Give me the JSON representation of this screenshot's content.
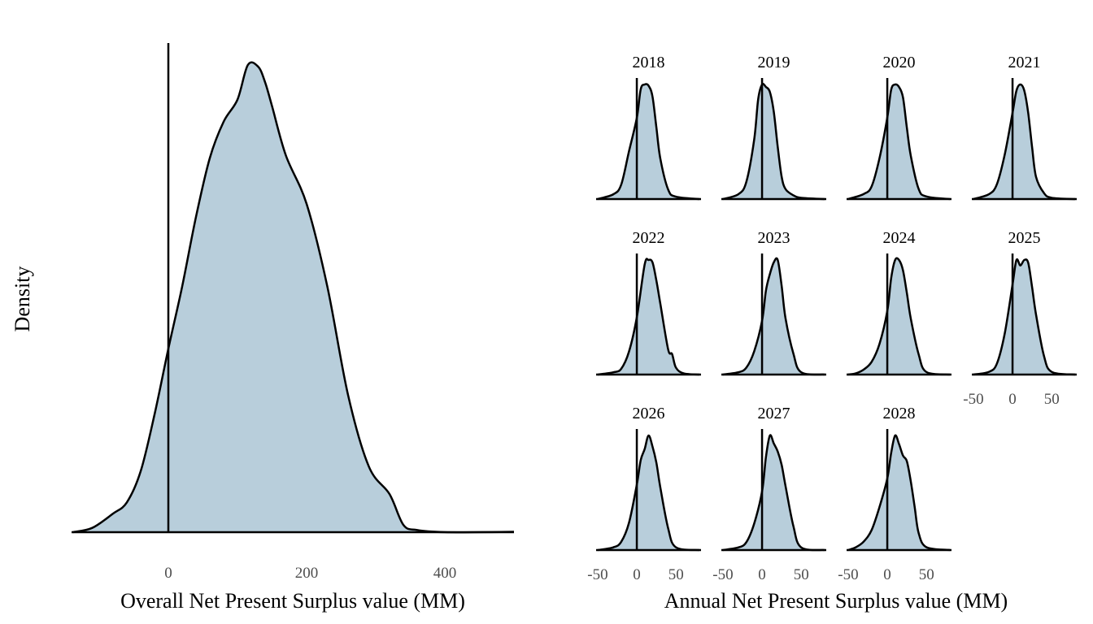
{
  "colors": {
    "fill": "#b8cedb",
    "line": "#000000",
    "tick_text": "#4d4d4d"
  },
  "chart_data": [
    {
      "type": "area",
      "kind": "density",
      "xlabel": "Overall Net Present Surplus value (MM)",
      "ylabel": "Density",
      "xlim": [
        -140,
        500
      ],
      "xticks": [
        0,
        200,
        400
      ],
      "xtick_labels": [
        "0",
        "200",
        "400"
      ],
      "y_ticks_shown": false,
      "reference_line_x": 0,
      "grid": false,
      "x": [
        -138,
        -110,
        -80,
        -60,
        -40,
        -20,
        0,
        20,
        40,
        60,
        80,
        100,
        115,
        130,
        140,
        150,
        170,
        200,
        230,
        260,
        290,
        320,
        340,
        360,
        400,
        450,
        500
      ],
      "y": [
        0.0,
        0.01,
        0.043,
        0.069,
        0.141,
        0.272,
        0.424,
        0.568,
        0.729,
        0.865,
        0.949,
        1.0,
        1.08,
        1.076,
        1.04,
        0.985,
        0.871,
        0.759,
        0.568,
        0.317,
        0.152,
        0.088,
        0.017,
        0.005,
        0.0,
        0.0,
        0.001
      ]
    },
    {
      "type": "area",
      "kind": "density-facets",
      "xlabel": "Annual Net Present Surplus value (MM)",
      "xlim": [
        -52,
        82
      ],
      "xticks": [
        -50,
        0,
        50
      ],
      "xtick_labels": [
        "-50",
        "0",
        "50"
      ],
      "reference_line_x": 0,
      "grid": false,
      "panels": [
        {
          "label": "2018",
          "x": [
            -50,
            -30,
            -20,
            -10,
            0,
            5,
            10,
            15,
            20,
            25,
            30,
            40,
            50,
            80
          ],
          "y": [
            0.0,
            0.04,
            0.12,
            0.4,
            0.68,
            0.92,
            0.96,
            0.95,
            0.86,
            0.6,
            0.34,
            0.08,
            0.02,
            0.0
          ]
        },
        {
          "label": "2019",
          "x": [
            -50,
            -30,
            -20,
            -10,
            -5,
            0,
            5,
            10,
            15,
            20,
            25,
            30,
            40,
            50,
            80
          ],
          "y": [
            0.0,
            0.04,
            0.14,
            0.48,
            0.8,
            0.92,
            0.9,
            0.86,
            0.7,
            0.42,
            0.18,
            0.08,
            0.03,
            0.01,
            0.0
          ]
        },
        {
          "label": "2020",
          "x": [
            -50,
            -30,
            -20,
            -10,
            0,
            5,
            10,
            15,
            20,
            25,
            30,
            40,
            50,
            80
          ],
          "y": [
            0.0,
            0.04,
            0.1,
            0.32,
            0.64,
            0.86,
            0.9,
            0.88,
            0.8,
            0.56,
            0.34,
            0.08,
            0.02,
            0.0
          ]
        },
        {
          "label": "2021",
          "x": [
            -50,
            -30,
            -20,
            -10,
            0,
            5,
            10,
            15,
            20,
            25,
            30,
            40,
            50,
            80
          ],
          "y": [
            0.0,
            0.04,
            0.12,
            0.36,
            0.7,
            0.88,
            0.93,
            0.88,
            0.7,
            0.42,
            0.18,
            0.05,
            0.01,
            0.0
          ]
        },
        {
          "label": "2022",
          "x": [
            -50,
            -30,
            -20,
            -10,
            0,
            10,
            15,
            20,
            25,
            30,
            40,
            45,
            50,
            60,
            80
          ],
          "y": [
            0.0,
            0.02,
            0.05,
            0.2,
            0.5,
            0.96,
            1.0,
            0.98,
            0.82,
            0.62,
            0.22,
            0.18,
            0.06,
            0.01,
            0.0
          ]
        },
        {
          "label": "2023",
          "x": [
            -50,
            -30,
            -20,
            -10,
            0,
            5,
            10,
            15,
            20,
            25,
            30,
            40,
            50,
            80
          ],
          "y": [
            0.0,
            0.02,
            0.06,
            0.2,
            0.46,
            0.72,
            0.86,
            0.96,
            0.98,
            0.76,
            0.48,
            0.18,
            0.02,
            0.0
          ]
        },
        {
          "label": "2024",
          "x": [
            -50,
            -40,
            -30,
            -20,
            -10,
            0,
            5,
            10,
            15,
            20,
            25,
            30,
            40,
            50,
            80
          ],
          "y": [
            0.0,
            0.01,
            0.04,
            0.1,
            0.24,
            0.5,
            0.76,
            0.9,
            0.9,
            0.82,
            0.64,
            0.44,
            0.16,
            0.02,
            0.0
          ]
        },
        {
          "label": "2025",
          "x": [
            -50,
            -30,
            -20,
            -10,
            0,
            5,
            10,
            15,
            20,
            25,
            30,
            40,
            50,
            80
          ],
          "y": [
            0.0,
            0.02,
            0.08,
            0.3,
            0.66,
            0.84,
            0.8,
            0.84,
            0.82,
            0.64,
            0.44,
            0.14,
            0.02,
            0.0
          ]
        },
        {
          "label": "2026",
          "x": [
            -50,
            -30,
            -20,
            -10,
            0,
            5,
            10,
            15,
            20,
            25,
            30,
            40,
            50,
            80
          ],
          "y": [
            0.0,
            0.02,
            0.06,
            0.2,
            0.48,
            0.66,
            0.74,
            0.84,
            0.76,
            0.64,
            0.46,
            0.16,
            0.02,
            0.0
          ]
        },
        {
          "label": "2027",
          "x": [
            -50,
            -30,
            -20,
            -10,
            0,
            5,
            10,
            15,
            20,
            25,
            30,
            40,
            50,
            80
          ],
          "y": [
            0.0,
            0.02,
            0.06,
            0.2,
            0.44,
            0.7,
            0.86,
            0.8,
            0.74,
            0.64,
            0.48,
            0.18,
            0.02,
            0.0
          ]
        },
        {
          "label": "2028",
          "x": [
            -50,
            -40,
            -30,
            -20,
            -10,
            0,
            5,
            10,
            15,
            20,
            25,
            30,
            35,
            40,
            50,
            80
          ],
          "y": [
            0.0,
            0.02,
            0.06,
            0.14,
            0.3,
            0.5,
            0.68,
            0.8,
            0.74,
            0.66,
            0.62,
            0.48,
            0.3,
            0.12,
            0.02,
            0.0
          ]
        }
      ]
    }
  ]
}
